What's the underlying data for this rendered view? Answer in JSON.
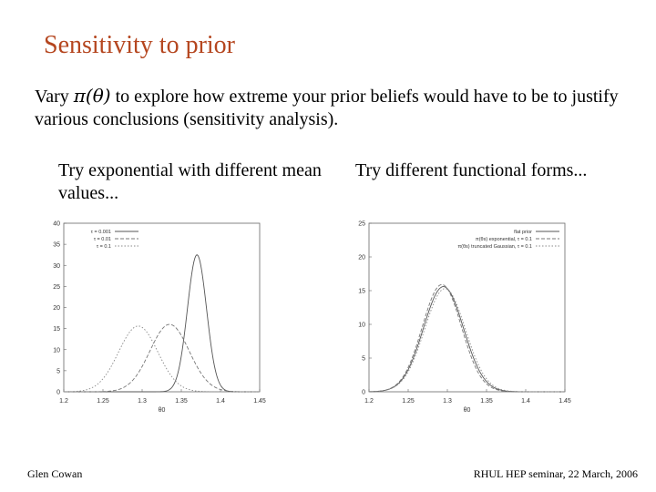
{
  "slide": {
    "title": "Sensitivity to prior",
    "intro_prefix": "Vary ",
    "intro_symbol": "π(θ)",
    "intro_suffix": " to explore how extreme your prior beliefs would have to be to justify various conclusions (sensitivity analysis).",
    "caption_left": "Try exponential with different mean values...",
    "caption_right": "Try different functional forms...",
    "footer_left": "Glen Cowan",
    "footer_right": "RHUL HEP seminar, 22 March, 2006"
  },
  "chart_data": [
    {
      "type": "line",
      "xlabel": "θ0",
      "xlim": [
        1.2,
        1.45
      ],
      "ylim": [
        0,
        40
      ],
      "x_ticks": [
        "1.2",
        "1.25",
        "1.3",
        "1.35",
        "1.4",
        "1.45"
      ],
      "y_ticks": [
        "0",
        "5",
        "10",
        "15",
        "20",
        "25",
        "30",
        "35",
        "40"
      ],
      "legend_placement": "top-left",
      "series": [
        {
          "name": "τ = 0.001",
          "style": "solid",
          "mean": 1.37,
          "sd": 0.0122,
          "peak": 32.5
        },
        {
          "name": "τ = 0.01",
          "style": "dashed",
          "mean": 1.335,
          "sd": 0.025,
          "peak": 16
        },
        {
          "name": "τ = 0.1",
          "style": "dotted",
          "mean": 1.295,
          "sd": 0.025,
          "peak": 15.6
        }
      ]
    },
    {
      "type": "line",
      "xlabel": "θ0",
      "xlim": [
        1.2,
        1.45
      ],
      "ylim": [
        0,
        25
      ],
      "x_ticks": [
        "1.2",
        "1.25",
        "1.3",
        "1.35",
        "1.4",
        "1.45"
      ],
      "y_ticks": [
        "0",
        "5",
        "10",
        "15",
        "20",
        "25"
      ],
      "legend_placement": "top-right",
      "series": [
        {
          "name": "flat prior",
          "style": "solid",
          "mean": 1.295,
          "sd": 0.0255,
          "peak": 15.6
        },
        {
          "name": "π(θs) exponential, τ = 0.1",
          "style": "dashed",
          "mean": 1.293,
          "sd": 0.025,
          "peak": 15.9
        },
        {
          "name": "π(θs) truncated Gaussian, τ = 0.1",
          "style": "dotted",
          "mean": 1.297,
          "sd": 0.026,
          "peak": 15.3
        }
      ]
    }
  ]
}
